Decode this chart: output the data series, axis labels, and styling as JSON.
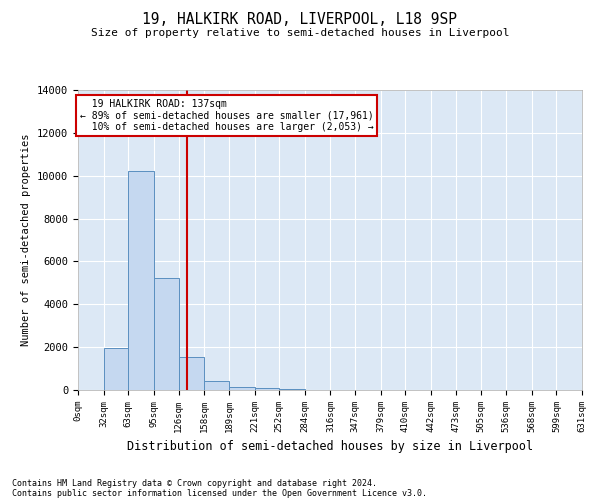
{
  "title": "19, HALKIRK ROAD, LIVERPOOL, L18 9SP",
  "subtitle": "Size of property relative to semi-detached houses in Liverpool",
  "xlabel": "Distribution of semi-detached houses by size in Liverpool",
  "ylabel": "Number of semi-detached properties",
  "footnote1": "Contains HM Land Registry data © Crown copyright and database right 2024.",
  "footnote2": "Contains public sector information licensed under the Open Government Licence v3.0.",
  "property_size": 137,
  "property_label": "19 HALKIRK ROAD: 137sqm",
  "pct_smaller": "89% of semi-detached houses are smaller (17,961)",
  "pct_larger": "10% of semi-detached houses are larger (2,053)",
  "bar_color": "#c5d8f0",
  "bar_edge_color": "#5a8fc0",
  "red_line_color": "#cc0000",
  "annotation_box_color": "#cc0000",
  "background_color": "#dce8f5",
  "ylim": [
    0,
    14000
  ],
  "yticks": [
    0,
    2000,
    4000,
    6000,
    8000,
    10000,
    12000,
    14000
  ],
  "bin_edges": [
    0,
    32,
    63,
    95,
    126,
    158,
    189,
    221,
    252,
    284,
    316,
    347,
    379,
    410,
    442,
    473,
    505,
    536,
    568,
    599,
    631
  ],
  "bin_counts": [
    0,
    1950,
    10200,
    5250,
    1550,
    400,
    150,
    100,
    60,
    0,
    0,
    0,
    0,
    0,
    0,
    0,
    0,
    0,
    0,
    0
  ]
}
